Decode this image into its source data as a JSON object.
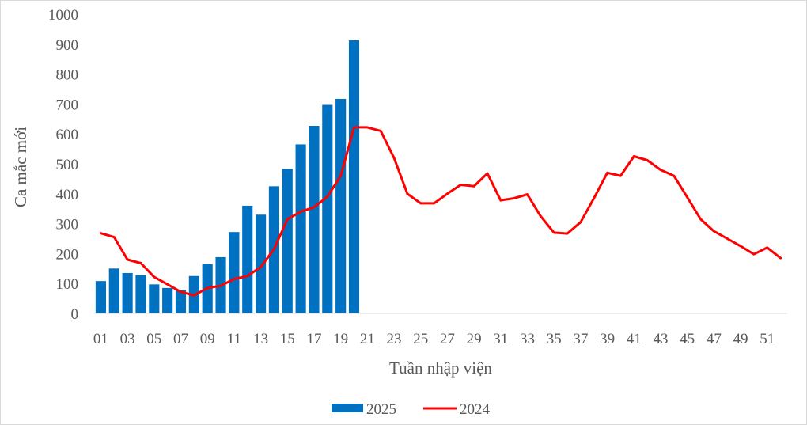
{
  "chart_data": {
    "type": "bar+line",
    "title": "",
    "xlabel": "Tuần nhập viện",
    "ylabel": "Ca mắc mới",
    "ylim": [
      0,
      1000
    ],
    "yticks": [
      "0",
      "100",
      "200",
      "300",
      "400",
      "500",
      "600",
      "700",
      "800",
      "900",
      "1000"
    ],
    "xtick_labels": [
      "01",
      "03",
      "05",
      "07",
      "09",
      "11",
      "13",
      "15",
      "17",
      "19",
      "21",
      "23",
      "25",
      "27",
      "29",
      "31",
      "33",
      "35",
      "37",
      "39",
      "41",
      "43",
      "45",
      "47",
      "49",
      "51"
    ],
    "weeks": [
      1,
      2,
      3,
      4,
      5,
      6,
      7,
      8,
      9,
      10,
      11,
      12,
      13,
      14,
      15,
      16,
      17,
      18,
      19,
      20,
      21,
      22,
      23,
      24,
      25,
      26,
      27,
      28,
      29,
      30,
      31,
      32,
      33,
      34,
      35,
      36,
      37,
      38,
      39,
      40,
      41,
      42,
      43,
      44,
      45,
      46,
      47,
      48,
      49,
      50,
      51,
      52
    ],
    "grid": false,
    "legend_position": "bottom",
    "series": [
      {
        "name": "2025",
        "kind": "bar",
        "color": "#0070c0",
        "values": [
          108,
          150,
          135,
          128,
          97,
          85,
          78,
          125,
          165,
          188,
          272,
          360,
          330,
          425,
          483,
          565,
          627,
          697,
          717,
          913
        ]
      },
      {
        "name": "2024",
        "kind": "line",
        "color": "#ff0000",
        "values": [
          268,
          255,
          180,
          168,
          122,
          97,
          72,
          60,
          85,
          92,
          115,
          125,
          155,
          215,
          315,
          340,
          355,
          390,
          460,
          622,
          622,
          610,
          520,
          400,
          368,
          368,
          400,
          430,
          425,
          468,
          378,
          385,
          398,
          325,
          270,
          267,
          305,
          385,
          470,
          460,
          525,
          512,
          480,
          460,
          388,
          315,
          275,
          250,
          225,
          198,
          220,
          185
        ]
      }
    ]
  }
}
